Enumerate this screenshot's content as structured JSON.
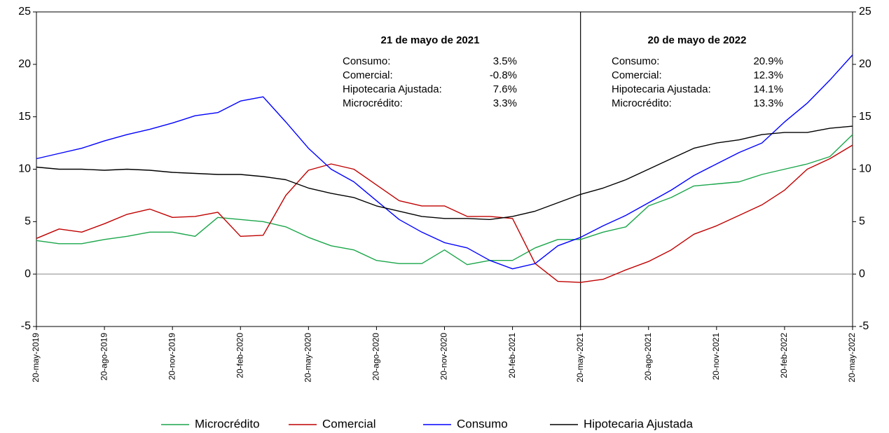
{
  "chart_data": {
    "type": "line",
    "x": [
      "20-may-2019",
      "20-jun-2019",
      "20-jul-2019",
      "20-ago-2019",
      "20-sep-2019",
      "20-oct-2019",
      "20-nov-2019",
      "20-dic-2019",
      "20-ene-2020",
      "20-feb-2020",
      "20-mar-2020",
      "20-abr-2020",
      "20-may-2020",
      "20-jun-2020",
      "20-jul-2020",
      "20-ago-2020",
      "20-sep-2020",
      "20-oct-2020",
      "20-nov-2020",
      "20-dic-2020",
      "20-ene-2021",
      "20-feb-2021",
      "20-mar-2021",
      "20-abr-2021",
      "20-may-2021",
      "20-jun-2021",
      "20-jul-2021",
      "20-ago-2021",
      "20-sep-2021",
      "20-oct-2021",
      "20-nov-2021",
      "20-dic-2021",
      "20-ene-2022",
      "20-feb-2022",
      "20-mar-2022",
      "20-abr-2022",
      "20-may-2022"
    ],
    "xticks": [
      "20-may-2019",
      "20-ago-2019",
      "20-nov-2019",
      "20-feb-2020",
      "20-may-2020",
      "20-ago-2020",
      "20-nov-2020",
      "20-feb-2021",
      "20-may-2021",
      "20-ago-2021",
      "20-nov-2021",
      "20-feb-2022",
      "20-may-2022"
    ],
    "series": [
      {
        "name": "Microcrédito",
        "color": "#1aa64a",
        "values": [
          3.2,
          2.9,
          2.9,
          3.3,
          3.6,
          4.0,
          4.0,
          3.6,
          5.4,
          5.2,
          5.0,
          4.5,
          3.5,
          2.7,
          2.3,
          1.3,
          1.0,
          1.0,
          2.3,
          0.9,
          1.3,
          1.3,
          2.5,
          3.3,
          3.3,
          4.0,
          4.5,
          6.5,
          7.3,
          8.4,
          8.6,
          8.8,
          9.5,
          10.0,
          10.5,
          11.2,
          13.3
        ]
      },
      {
        "name": "Comercial",
        "color": "#c00000",
        "values": [
          3.4,
          4.3,
          4.0,
          4.8,
          5.7,
          6.2,
          5.4,
          5.5,
          5.9,
          3.6,
          3.7,
          7.5,
          9.9,
          10.5,
          10.0,
          8.5,
          7.0,
          6.5,
          6.5,
          5.5,
          5.5,
          5.3,
          1.0,
          -0.7,
          -0.8,
          -0.5,
          0.4,
          1.2,
          2.3,
          3.8,
          4.6,
          5.6,
          6.6,
          8.0,
          10.0,
          11.0,
          12.3
        ]
      },
      {
        "name": "Consumo",
        "color": "#0000ff",
        "values": [
          11.0,
          11.5,
          12.0,
          12.7,
          13.3,
          13.8,
          14.4,
          15.1,
          15.4,
          16.5,
          16.9,
          14.5,
          12.0,
          10.0,
          8.8,
          7.0,
          5.2,
          4.0,
          3.0,
          2.5,
          1.3,
          0.5,
          1.0,
          2.7,
          3.5,
          4.6,
          5.6,
          6.8,
          8.0,
          9.4,
          10.5,
          11.6,
          12.5,
          14.5,
          16.3,
          18.5,
          20.9
        ]
      },
      {
        "name": "Hipotecaria Ajustada",
        "color": "#000000",
        "values": [
          10.2,
          10.0,
          10.0,
          9.9,
          10.0,
          9.9,
          9.7,
          9.6,
          9.5,
          9.5,
          9.3,
          9.0,
          8.2,
          7.7,
          7.3,
          6.5,
          6.0,
          5.5,
          5.3,
          5.3,
          5.2,
          5.5,
          6.0,
          6.8,
          7.6,
          8.2,
          9.0,
          10.0,
          11.0,
          12.0,
          12.5,
          12.8,
          13.3,
          13.5,
          13.5,
          13.9,
          14.1
        ]
      }
    ],
    "ylim": [
      -5,
      25
    ],
    "yticks": [
      -5,
      0,
      5,
      10,
      15,
      20,
      25
    ],
    "y2lim": [
      -5,
      25
    ],
    "y2ticks": [
      -5,
      0,
      5,
      10,
      15,
      20,
      25
    ],
    "vline": "20-may-2021",
    "annotations": [
      {
        "title": "21 de mayo de 2021",
        "rows": [
          [
            "Consumo:",
            "3.5%"
          ],
          [
            "Comercial:",
            "-0.8%"
          ],
          [
            "Hipotecaria Ajustada:",
            "7.6%"
          ],
          [
            "Microcrédito:",
            "3.3%"
          ]
        ]
      },
      {
        "title": "20 de mayo de 2022",
        "rows": [
          [
            "Consumo:",
            "20.9%"
          ],
          [
            "Comercial:",
            "12.3%"
          ],
          [
            "Hipotecaria Ajustada:",
            "14.1%"
          ],
          [
            "Microcrédito:",
            "13.3%"
          ]
        ]
      }
    ],
    "legend": "bottom"
  }
}
